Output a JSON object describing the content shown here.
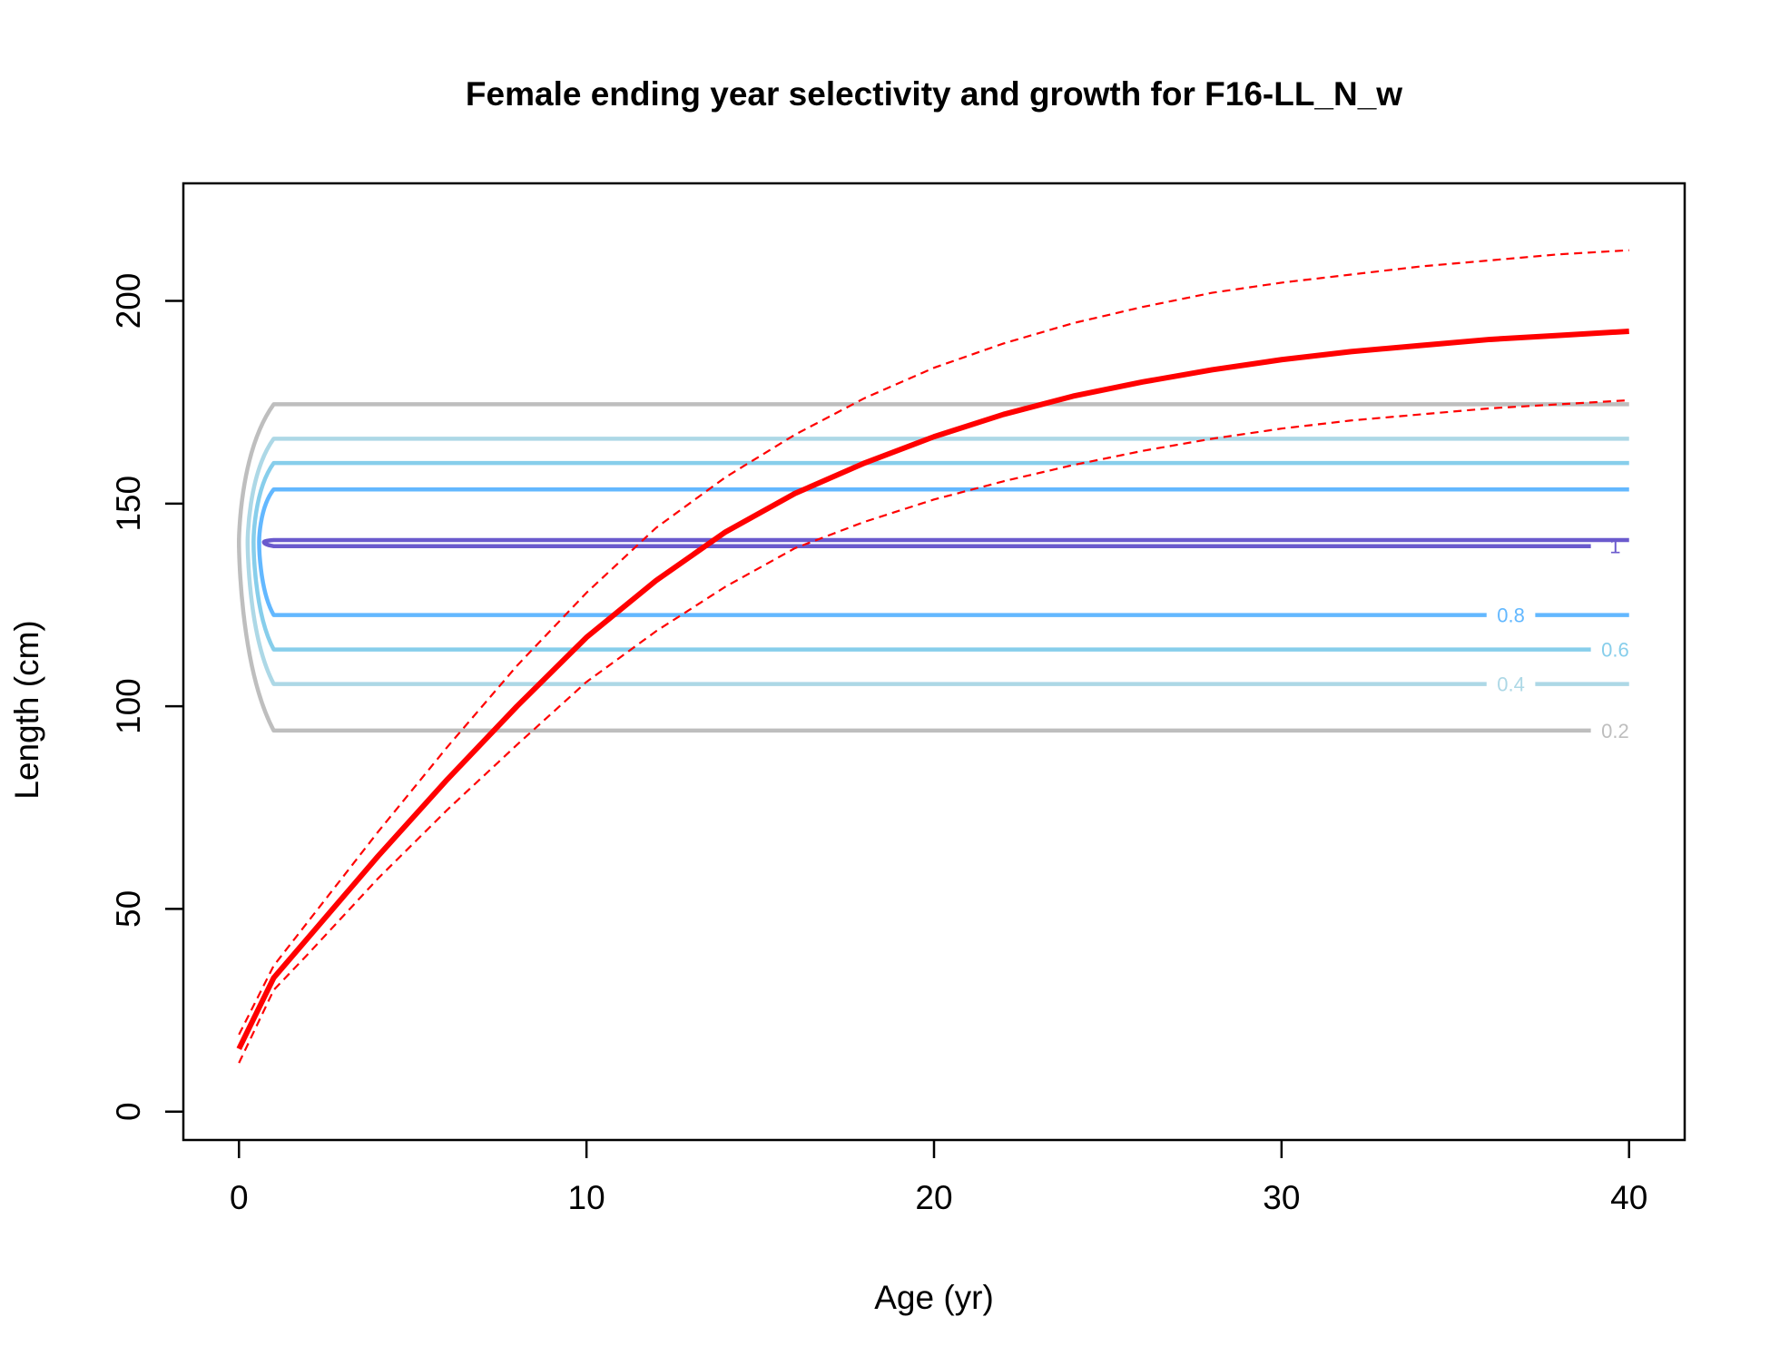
{
  "chart_data": {
    "type": "line",
    "title": "Female ending year selectivity and growth for F16-LL_N_w",
    "xlabel": "Age (yr)",
    "ylabel": "Length (cm)",
    "xlim": [
      -1.6,
      41.6
    ],
    "ylim": [
      -7,
      229
    ],
    "xticks": [
      0,
      10,
      20,
      30,
      40
    ],
    "yticks": [
      0,
      50,
      100,
      150,
      200
    ],
    "grid": false,
    "legend": "none",
    "colors": {
      "growth": "#ff0000",
      "contour_0.2": "#bebebe",
      "contour_0.4": "#add8e6",
      "contour_0.6": "#87ceeb",
      "contour_0.8": "#63b8ff",
      "contour_1": "#6a5acd"
    },
    "series": [
      {
        "style": "solid-thick",
        "x": [
          0,
          1,
          2,
          4,
          6,
          8,
          10,
          12,
          14,
          16,
          18,
          20,
          22,
          24,
          26,
          28,
          30,
          32,
          34,
          36,
          38,
          40
        ],
        "y": [
          15.5,
          33,
          43,
          63,
          82,
          100,
          117,
          131,
          143,
          152.5,
          160,
          166.5,
          172,
          176.5,
          180,
          183,
          185.5,
          187.5,
          189,
          190.5,
          191.5,
          192.5
        ]
      },
      {
        "style": "dashed",
        "x": [
          0,
          1,
          2,
          4,
          6,
          8,
          10,
          12,
          14,
          16,
          18,
          20,
          22,
          24,
          26,
          28,
          30,
          32,
          34,
          36,
          38,
          40
        ],
        "y": [
          19,
          36,
          47,
          69,
          90,
          110,
          128,
          144,
          156.5,
          167,
          176,
          183.5,
          189.5,
          194.5,
          198.5,
          202,
          204.5,
          206.5,
          208.5,
          210,
          211.5,
          212.5
        ]
      },
      {
        "style": "dashed",
        "x": [
          0,
          1,
          2,
          4,
          6,
          8,
          10,
          12,
          14,
          16,
          18,
          20,
          22,
          24,
          26,
          28,
          30,
          32,
          34,
          36,
          38,
          40
        ],
        "y": [
          12,
          30,
          39,
          57.5,
          74.5,
          90.5,
          106,
          118.5,
          129.5,
          139,
          145.5,
          151,
          155.5,
          159.5,
          163,
          166,
          168.5,
          170.5,
          172,
          173.5,
          174.5,
          175.5
        ]
      }
    ],
    "contours": [
      {
        "level": "0.2",
        "upper": 174.5,
        "lower": 94,
        "label": "0.2"
      },
      {
        "level": "0.4",
        "upper": 166,
        "lower": 105.5,
        "label": "0.4"
      },
      {
        "level": "0.6",
        "upper": 160,
        "lower": 114,
        "label": "0.6"
      },
      {
        "level": "0.8",
        "upper": 153.5,
        "lower": 122.5,
        "label": "0.8"
      },
      {
        "level": "1",
        "upper": 141,
        "lower": 139.5,
        "label": "1"
      }
    ]
  }
}
